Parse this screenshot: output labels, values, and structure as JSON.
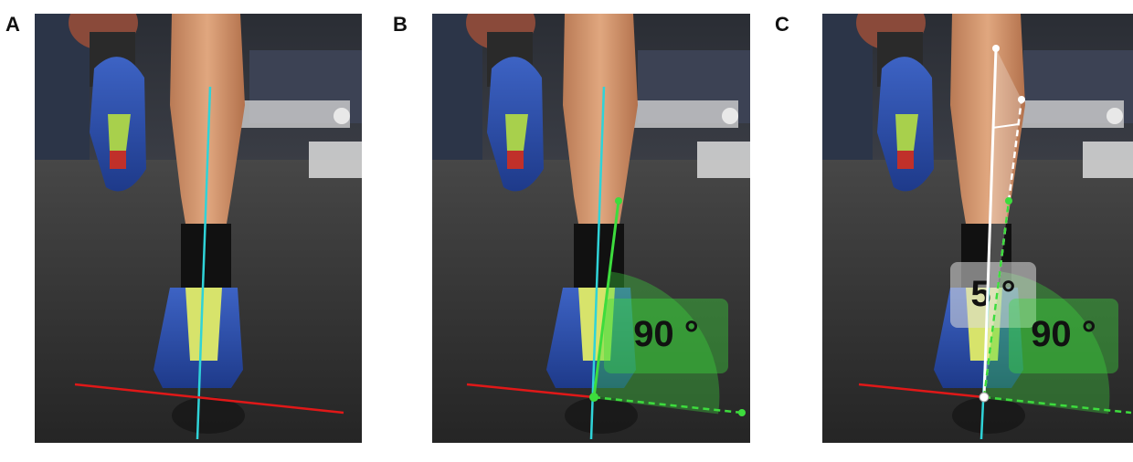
{
  "panels": [
    {
      "label": "A"
    },
    {
      "label": "B",
      "angle_label": "90 °"
    },
    {
      "label": "C",
      "angle_labels": [
        "5 °",
        "90 °"
      ]
    }
  ],
  "colors": {
    "midline": "#2fd3d8",
    "ground_line": "#e01818",
    "angle_line": "#3ddc3d",
    "reference_line": "#ffffff",
    "angle_fill": "#3ddc3d"
  }
}
